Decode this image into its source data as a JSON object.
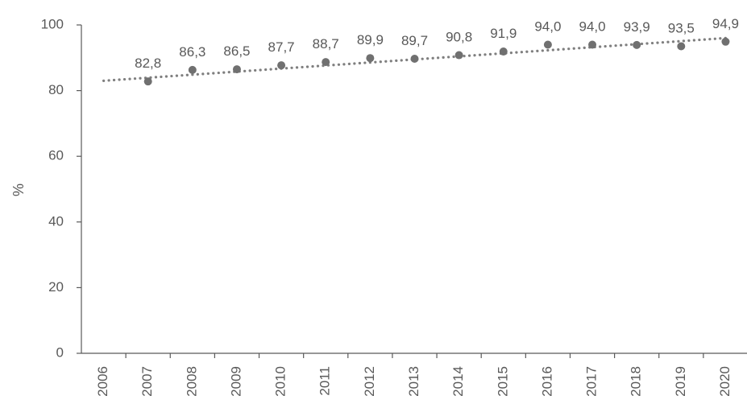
{
  "chart_data": {
    "type": "scatter",
    "ylabel": "%",
    "ylim": [
      0,
      100
    ],
    "y_ticks": [
      "0",
      "20",
      "40",
      "60",
      "80",
      "100"
    ],
    "categories": [
      "2006",
      "2007",
      "2008",
      "2009",
      "2010",
      "2011",
      "2012",
      "2013",
      "2014",
      "2015",
      "2016",
      "2017",
      "2018",
      "2019",
      "2020"
    ],
    "points": [
      {
        "x": "2007",
        "y": 82.8,
        "label": "82,8"
      },
      {
        "x": "2008",
        "y": 86.3,
        "label": "86,3"
      },
      {
        "x": "2009",
        "y": 86.5,
        "label": "86,5"
      },
      {
        "x": "2010",
        "y": 87.7,
        "label": "87,7"
      },
      {
        "x": "2011",
        "y": 88.7,
        "label": "88,7"
      },
      {
        "x": "2012",
        "y": 89.9,
        "label": "89,9"
      },
      {
        "x": "2013",
        "y": 89.7,
        "label": "89,7"
      },
      {
        "x": "2014",
        "y": 90.8,
        "label": "90,8"
      },
      {
        "x": "2015",
        "y": 91.9,
        "label": "91,9"
      },
      {
        "x": "2016",
        "y": 94.0,
        "label": "94,0"
      },
      {
        "x": "2017",
        "y": 94.0,
        "label": "94,0"
      },
      {
        "x": "2018",
        "y": 93.9,
        "label": "93,9"
      },
      {
        "x": "2019",
        "y": 93.5,
        "label": "93,5"
      },
      {
        "x": "2020",
        "y": 94.9,
        "label": "94,9"
      }
    ],
    "trendline": {
      "style": "dotted",
      "from": {
        "x": "2006",
        "y": 83.0
      },
      "to": {
        "x": "2020",
        "y": 96.0
      }
    },
    "grid": false,
    "legend": "none",
    "colors": {
      "marker": "#707070",
      "trendline": "#7f7f7f",
      "axis": "#595959",
      "text": "#595959"
    }
  }
}
